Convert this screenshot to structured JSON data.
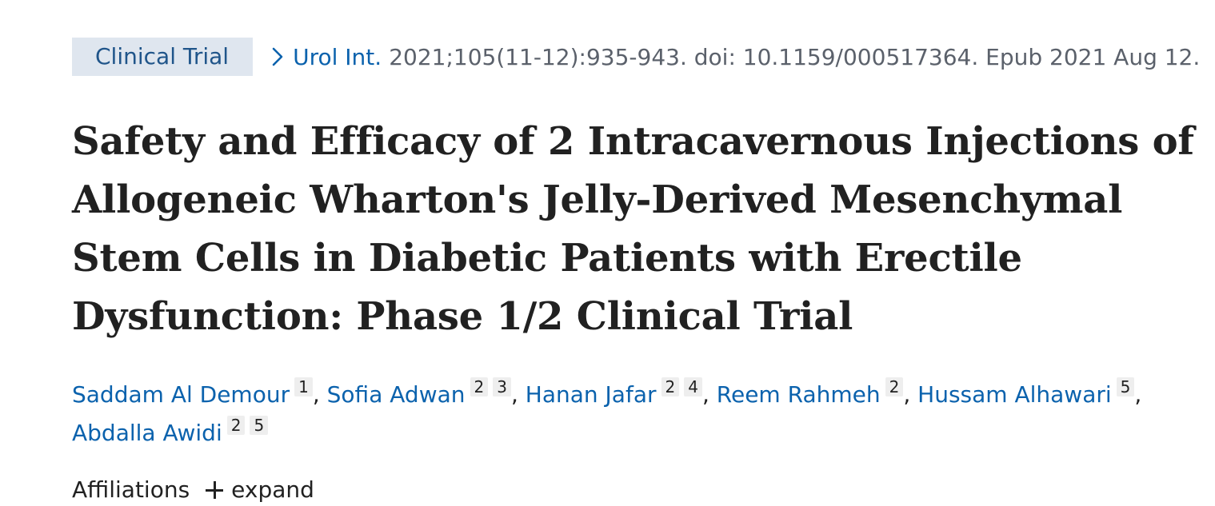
{
  "publication_type": "Clinical Trial",
  "journal": {
    "link_text": "Urol Int.",
    "citation": "2021;105(11-12):935-943. doi: 10.1159/000517364. Epub 2021 Aug 12."
  },
  "title": "Safety and Efficacy of 2 Intracavernous Injections of Allogeneic Wharton's Jelly-Derived Mesenchymal Stem Cells in Diabetic Patients with Erectile Dysfunction: Phase 1/2 Clinical Trial",
  "authors": [
    {
      "name": "Saddam Al Demour",
      "affiliations": [
        "1"
      ]
    },
    {
      "name": "Sofia Adwan",
      "affiliations": [
        "2",
        "3"
      ]
    },
    {
      "name": "Hanan Jafar",
      "affiliations": [
        "2",
        "4"
      ]
    },
    {
      "name": "Reem Rahmeh",
      "affiliations": [
        "2"
      ]
    },
    {
      "name": "Hussam Alhawari",
      "affiliations": [
        "5"
      ]
    },
    {
      "name": "Abdalla Awidi",
      "affiliations": [
        "2",
        "5"
      ]
    }
  ],
  "author_separator": ",",
  "affiliations_section": {
    "label": "Affiliations",
    "toggle_label": "expand"
  },
  "colors": {
    "link": "#0b62ad",
    "publication_type_bg": "#dfe6ef",
    "text": "#212121",
    "muted": "#5b616b"
  },
  "icons": {
    "breadcrumb": "chevron-right-icon",
    "expand": "plus-icon"
  }
}
